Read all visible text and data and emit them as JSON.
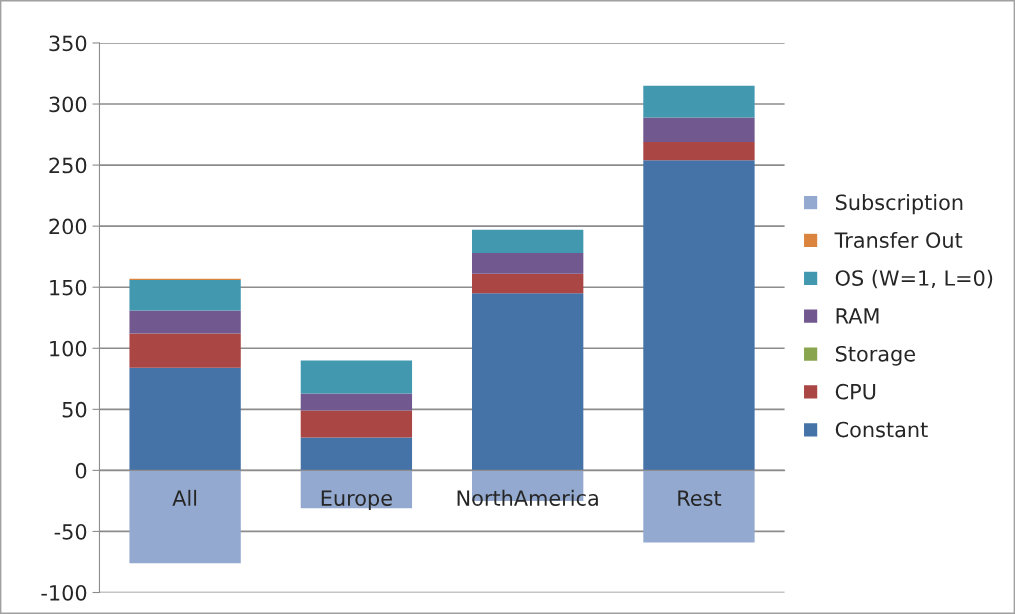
{
  "chart_data": {
    "type": "bar",
    "stacked": true,
    "categories": [
      "All",
      "Europe",
      "NorthAmerica",
      "Rest"
    ],
    "series": [
      {
        "name": "Constant",
        "color": "#4572a7",
        "values": [
          84,
          27,
          145,
          254
        ]
      },
      {
        "name": "CPU",
        "color": "#aa4643",
        "values": [
          28,
          22,
          16,
          15
        ]
      },
      {
        "name": "Storage",
        "color": "#89a54e",
        "values": [
          0,
          0,
          0,
          0
        ]
      },
      {
        "name": "RAM",
        "color": "#71588f",
        "values": [
          19,
          14,
          17,
          20
        ]
      },
      {
        "name": "OS (W=1, L=0)",
        "color": "#4198af",
        "values": [
          25,
          27,
          19,
          26
        ]
      },
      {
        "name": "Transfer Out",
        "color": "#db843d",
        "values": [
          1,
          0,
          0,
          0
        ]
      },
      {
        "name": "Subscription",
        "color": "#93a9cf",
        "values": [
          -76,
          -31,
          -25,
          -59
        ]
      }
    ],
    "ylim": [
      -100,
      350
    ],
    "yticks": [
      -100,
      -50,
      0,
      50,
      100,
      150,
      200,
      250,
      300,
      350
    ],
    "grid": "y",
    "legend": "right"
  }
}
